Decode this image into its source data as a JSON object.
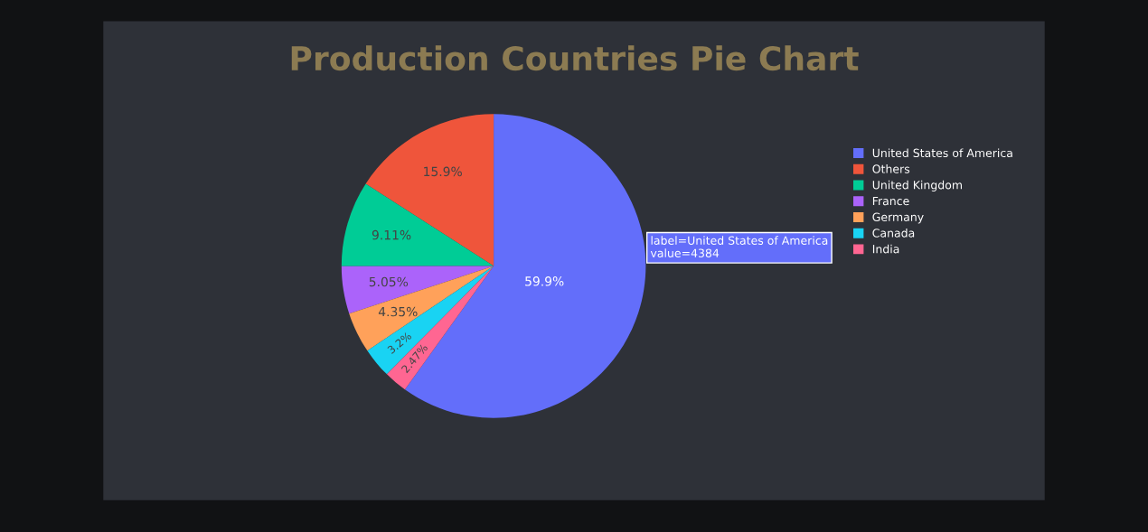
{
  "chart_data": {
    "type": "pie",
    "title": "Production Countries Pie Chart",
    "categories": [
      "United States of America",
      "Others",
      "United Kingdom",
      "France",
      "Germany",
      "Canada",
      "India"
    ],
    "values": [
      59.9,
      15.9,
      9.11,
      5.05,
      4.35,
      3.2,
      2.47
    ],
    "colors": [
      "#636efa",
      "#ef553b",
      "#00cc96",
      "#ab63fa",
      "#ffa15a",
      "#19d3f3",
      "#ff6692"
    ],
    "value_labels": [
      "59.9%",
      "15.9%",
      "9.11%",
      "5.05%",
      "4.35%",
      "3.2%",
      "2.47%"
    ],
    "annotations": [
      "label=United States of America\nvalue=4384"
    ],
    "legend": "top right"
  }
}
